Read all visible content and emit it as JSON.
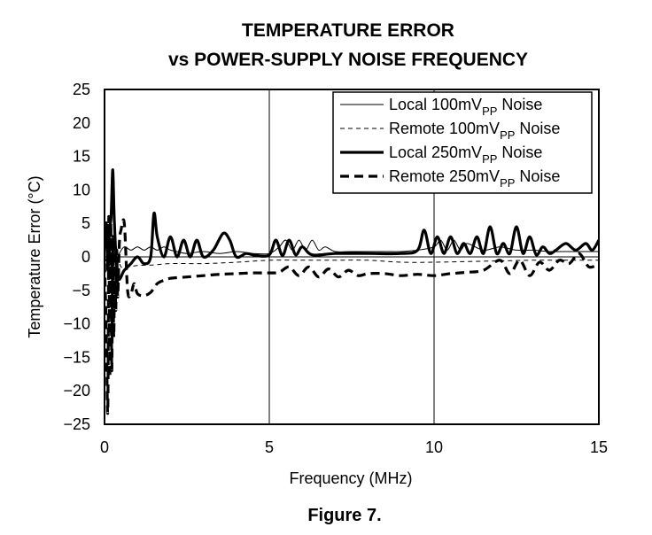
{
  "chart_data": {
    "type": "line",
    "title": [
      "TEMPERATURE ERROR",
      "vs POWER-SUPPLY NOISE FREQUENCY"
    ],
    "xlabel": "Frequency (MHz)",
    "ylabel": "Temperature Error (°C)",
    "caption": "Figure 7.",
    "xlim": [
      0,
      15
    ],
    "ylim": [
      -25,
      25
    ],
    "xticks": [
      0,
      5,
      10,
      15
    ],
    "yticks": [
      25,
      20,
      15,
      10,
      5,
      0,
      -5,
      -10,
      -15,
      -20,
      -25
    ],
    "ytick_labels": [
      "25",
      "20",
      "15",
      "10",
      "5",
      "0",
      "−5",
      "−10",
      "−15",
      "−20",
      "−25"
    ],
    "grid": "major x at 5 MHz intervals, horizontal line at 0",
    "legend_position": "top-right",
    "series": [
      {
        "name": "Local 100mVPP Noise",
        "legend": {
          "pre": "Local 100mV",
          "sub": "PP",
          "post": " Noise"
        },
        "style": "thin-solid",
        "x": [
          0,
          0.05,
          0.1,
          0.15,
          0.2,
          0.25,
          0.3,
          0.35,
          0.45,
          0.6,
          0.8,
          1.0,
          1.2,
          1.4,
          1.6,
          1.8,
          2.0,
          2.2,
          2.5,
          3.0,
          3.5,
          4.0,
          4.5,
          5.0,
          5.3,
          5.5,
          5.7,
          5.9,
          6.1,
          6.3,
          6.5,
          6.7,
          7.0,
          7.5,
          8.0,
          8.5,
          9.0,
          9.5,
          10.0,
          10.2,
          10.4,
          10.6,
          10.8,
          11.0,
          11.5,
          12.0,
          12.5,
          13.0,
          13.5,
          14.0,
          14.5,
          15.0
        ],
        "y": [
          0,
          2,
          -1,
          3,
          -2,
          1,
          0,
          -1,
          0.5,
          1.5,
          1.0,
          1.5,
          1.0,
          1.5,
          1.0,
          1.5,
          1.0,
          0.8,
          0.5,
          0.8,
          0.5,
          0.8,
          0.5,
          0.5,
          1.5,
          2.5,
          1.0,
          2.5,
          1.0,
          2.5,
          1.0,
          1.5,
          0.8,
          0.8,
          0.8,
          0.8,
          0.8,
          1.0,
          1.5,
          2.5,
          1.0,
          2.5,
          1.0,
          2.0,
          1.0,
          1.5,
          1.0,
          1.0,
          0.8,
          0.8,
          0.8,
          0.8
        ]
      },
      {
        "name": "Remote 100mVPP Noise",
        "legend": {
          "pre": "Remote 100mV",
          "sub": "PP",
          "post": " Noise"
        },
        "style": "thin-dashed",
        "x": [
          0,
          0.1,
          0.2,
          0.3,
          0.4,
          0.5,
          0.7,
          1.0,
          1.5,
          2.0,
          3.0,
          4.0,
          5.0,
          6.0,
          7.0,
          8.0,
          9.0,
          10.0,
          11.0,
          12.0,
          13.0,
          14.0,
          15.0
        ],
        "y": [
          0,
          -1,
          1,
          -2,
          0,
          -1.5,
          -1.5,
          -1.3,
          -1.2,
          -1.0,
          -1.0,
          -0.8,
          -0.5,
          -0.5,
          -0.5,
          -0.5,
          -0.8,
          -0.8,
          -0.7,
          -0.6,
          -0.5,
          -0.5,
          -0.5
        ]
      },
      {
        "name": "Local 250mVPP Noise",
        "legend": {
          "pre": "Local 250mV",
          "sub": "PP",
          "post": " Noise"
        },
        "style": "thick-solid",
        "x": [
          0,
          0.05,
          0.1,
          0.15,
          0.2,
          0.25,
          0.3,
          0.4,
          0.6,
          0.8,
          1.0,
          1.2,
          1.4,
          1.5,
          1.6,
          1.8,
          2.0,
          2.2,
          2.4,
          2.6,
          2.8,
          3.0,
          3.3,
          3.6,
          3.8,
          4.0,
          4.3,
          4.6,
          5.0,
          5.2,
          5.4,
          5.6,
          5.8,
          6.0,
          6.3,
          7.0,
          8.0,
          9.0,
          9.5,
          9.7,
          9.9,
          10.1,
          10.3,
          10.5,
          10.7,
          10.9,
          11.1,
          11.3,
          11.5,
          11.7,
          11.9,
          12.1,
          12.3,
          12.5,
          12.7,
          12.9,
          13.1,
          13.3,
          13.5,
          13.7,
          14.0,
          14.3,
          14.6,
          14.8,
          15.0
        ],
        "y": [
          2,
          5,
          -2,
          4,
          6,
          13,
          5,
          -3,
          -2,
          -1,
          0,
          -1,
          0,
          6.5,
          3,
          0,
          3,
          0,
          2.5,
          0,
          2.5,
          0,
          1.0,
          3.5,
          2.5,
          0,
          0.5,
          0.2,
          0.3,
          2.5,
          0.2,
          2.5,
          0.3,
          1.5,
          0.3,
          0.5,
          0.5,
          0.5,
          1.0,
          4.0,
          0.5,
          3.0,
          0.5,
          3.0,
          0.5,
          2.0,
          0.5,
          3.0,
          0.5,
          4.5,
          0.5,
          2.0,
          0.5,
          4.5,
          0.5,
          3.0,
          0.3,
          1.5,
          0.5,
          1.0,
          2.0,
          1.0,
          2.0,
          1.0,
          2.5
        ]
      },
      {
        "name": "Remote 250mVPP Noise",
        "legend": {
          "pre": "Remote 250mV",
          "sub": "PP",
          "post": " Noise"
        },
        "style": "thick-dashed",
        "x": [
          0,
          0.05,
          0.1,
          0.13,
          0.16,
          0.19,
          0.22,
          0.25,
          0.28,
          0.31,
          0.34,
          0.37,
          0.4,
          0.45,
          0.5,
          0.6,
          0.7,
          0.8,
          0.9,
          1.0,
          1.2,
          1.4,
          1.6,
          1.8,
          2.0,
          2.5,
          3.0,
          3.5,
          4.0,
          4.5,
          5.0,
          5.3,
          5.6,
          5.9,
          6.2,
          6.5,
          6.8,
          7.1,
          7.4,
          7.7,
          8.0,
          8.5,
          9.0,
          9.5,
          10.0,
          10.5,
          11.0,
          11.5,
          12.0,
          12.3,
          12.6,
          12.9,
          13.2,
          13.5,
          13.8,
          14.1,
          14.4,
          14.7,
          15.0
        ],
        "y": [
          -1,
          -10,
          -23,
          6,
          -18,
          5,
          -17,
          3,
          -12,
          2,
          -8,
          1,
          -6,
          2,
          4,
          5,
          -5,
          -5.5,
          -4,
          -5.5,
          -5.8,
          -5.3,
          -4.0,
          -3.5,
          -3.2,
          -3.0,
          -2.8,
          -2.6,
          -2.5,
          -2.4,
          -2.4,
          -2.3,
          -1.5,
          -2.8,
          -1.5,
          -3.0,
          -1.8,
          -3.0,
          -2.0,
          -2.8,
          -2.5,
          -2.5,
          -2.8,
          -2.6,
          -2.8,
          -2.5,
          -2.3,
          -2.0,
          -0.5,
          -2.5,
          -0.5,
          -2.8,
          -0.8,
          -2.0,
          -0.5,
          -1.0,
          0.5,
          -1.5,
          -1.0
        ]
      }
    ]
  }
}
